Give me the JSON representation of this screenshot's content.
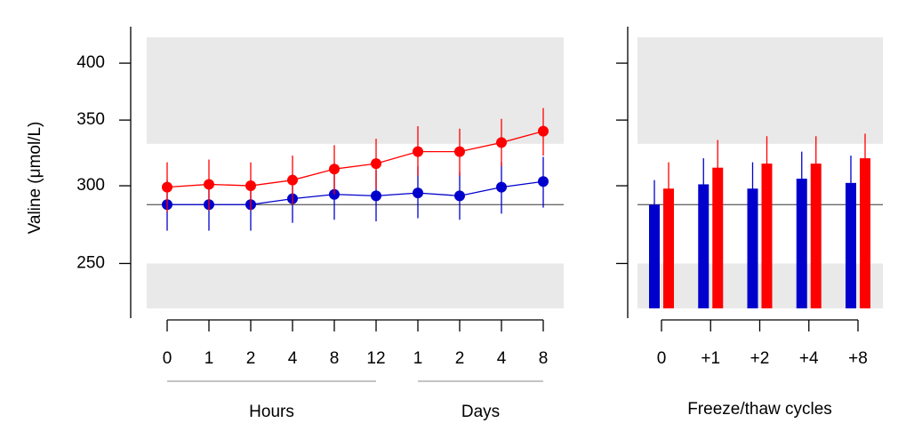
{
  "chart_data": [
    {
      "type": "line",
      "y_label": "Valine (μmol/L)",
      "log_y": true,
      "ylim": [
        225,
        425
      ],
      "yticks": [
        250,
        300,
        350,
        400
      ],
      "shaded_ranges": [
        [
          331,
          425
        ],
        [
          225,
          250
        ]
      ],
      "reference_line": 287,
      "categories": [
        "0",
        "1",
        "2",
        "4",
        "8",
        "12",
        "1",
        "2",
        "4",
        "8"
      ],
      "x_groups": [
        {
          "label": "Hours",
          "start": 0,
          "end": 5
        },
        {
          "label": "Days",
          "start": 6,
          "end": 9
        }
      ],
      "series": [
        {
          "color": "#0000cc",
          "values": [
            287,
            287,
            287,
            291,
            294,
            293,
            295,
            293,
            299,
            303
          ],
          "lower": [
            270,
            270,
            270,
            275,
            277,
            276,
            278,
            277,
            281,
            285
          ],
          "upper": [
            304,
            304,
            304,
            308,
            312,
            311,
            314,
            310,
            317,
            321
          ]
        },
        {
          "color": "#ff0000",
          "values": [
            299,
            301,
            300,
            304,
            312,
            316,
            325,
            325,
            332,
            341
          ],
          "lower": [
            282,
            283,
            283,
            287,
            294,
            298,
            307,
            307,
            314,
            322
          ],
          "upper": [
            317,
            319,
            317,
            322,
            330,
            335,
            345,
            343,
            351,
            360
          ]
        }
      ]
    },
    {
      "type": "bar",
      "x_label": "Freeze/thaw cycles",
      "log_y": true,
      "ylim": [
        225,
        425
      ],
      "yticks": [
        250,
        300,
        350,
        400
      ],
      "shaded_ranges": [
        [
          331,
          425
        ],
        [
          225,
          250
        ]
      ],
      "reference_line": 287,
      "categories": [
        "0",
        "+1",
        "+2",
        "+4",
        "+8"
      ],
      "series": [
        {
          "color": "#0000cc",
          "values": [
            287,
            301,
            298,
            305,
            302
          ],
          "lower": [
            270,
            283,
            282,
            288,
            285
          ],
          "upper": [
            304,
            320,
            317,
            325,
            322
          ]
        },
        {
          "color": "#ff0000",
          "values": [
            298,
            313,
            316,
            316,
            320
          ],
          "lower": [
            282,
            295,
            298,
            298,
            301
          ],
          "upper": [
            317,
            334,
            337,
            337,
            339
          ]
        }
      ]
    }
  ]
}
